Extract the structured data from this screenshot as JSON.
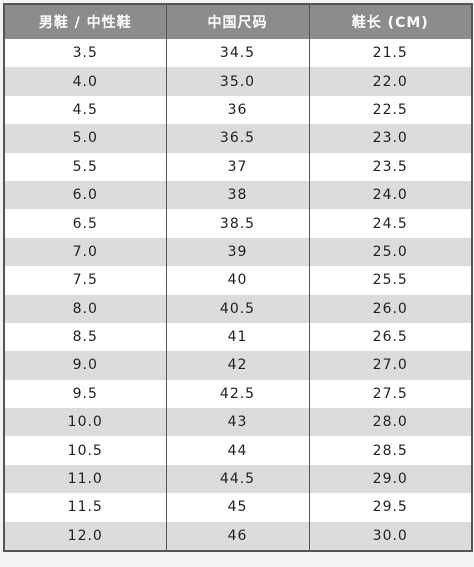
{
  "table": {
    "header": [
      "男鞋 / 中性鞋",
      "中国尺码",
      "鞋长 (CM)"
    ],
    "rows": [
      [
        "3.5",
        "34.5",
        "21.5"
      ],
      [
        "4.0",
        "35.0",
        "22.0"
      ],
      [
        "4.5",
        "36",
        "22.5"
      ],
      [
        "5.0",
        "36.5",
        "23.0"
      ],
      [
        "5.5",
        "37",
        "23.5"
      ],
      [
        "6.0",
        "38",
        "24.0"
      ],
      [
        "6.5",
        "38.5",
        "24.5"
      ],
      [
        "7.0",
        "39",
        "25.0"
      ],
      [
        "7.5",
        "40",
        "25.5"
      ],
      [
        "8.0",
        "40.5",
        "26.0"
      ],
      [
        "8.5",
        "41",
        "26.5"
      ],
      [
        "9.0",
        "42",
        "27.0"
      ],
      [
        "9.5",
        "42.5",
        "27.5"
      ],
      [
        "10.0",
        "43",
        "28.0"
      ],
      [
        "10.5",
        "44",
        "28.5"
      ],
      [
        "11.0",
        "44.5",
        "29.0"
      ],
      [
        "11.5",
        "45",
        "29.5"
      ],
      [
        "12.0",
        "46",
        "30.0"
      ]
    ]
  }
}
